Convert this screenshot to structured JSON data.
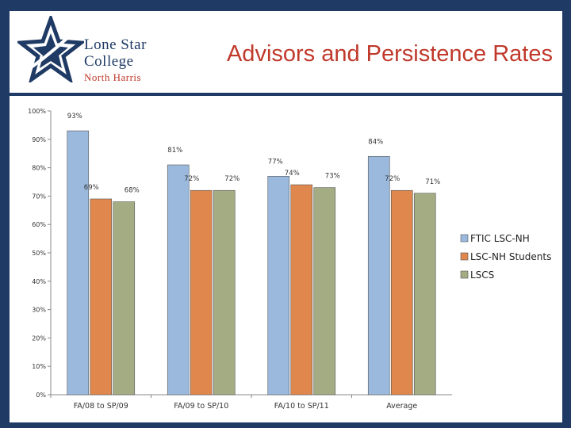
{
  "header": {
    "title": "Advisors and Persistence Rates",
    "logo_text": [
      "Lone Star",
      "College",
      "North Harris"
    ]
  },
  "colors": {
    "background": "#1f3a64",
    "title": "#c0392b",
    "series": [
      "#9ab9dd",
      "#e0874d",
      "#a4ac84"
    ]
  },
  "icons": {
    "logo": "star-logo-icon"
  },
  "chart_data": {
    "type": "bar",
    "title": "",
    "xlabel": "",
    "ylabel": "",
    "ylim": [
      0,
      100
    ],
    "yticks": [
      "0%",
      "10%",
      "20%",
      "30%",
      "40%",
      "50%",
      "60%",
      "70%",
      "80%",
      "90%",
      "100%"
    ],
    "categories": [
      "FA/08 to SP/09",
      "FA/09 to SP/10",
      "FA/10 to SP/11",
      "Average"
    ],
    "series": [
      {
        "name": "FTIC LSC-NH",
        "values": [
          93,
          81,
          77,
          84
        ],
        "labels": [
          "93%",
          "81%",
          "77%",
          "84%"
        ]
      },
      {
        "name": "LSC-NH Students",
        "values": [
          69,
          72,
          74,
          72
        ],
        "labels": [
          "69%",
          "72%",
          "74%",
          "72%"
        ]
      },
      {
        "name": "LSCS",
        "values": [
          68,
          72,
          73,
          71
        ],
        "labels": [
          "68%",
          "72%",
          "73%",
          "71%"
        ]
      }
    ],
    "legend_position": "right",
    "grid": false
  }
}
